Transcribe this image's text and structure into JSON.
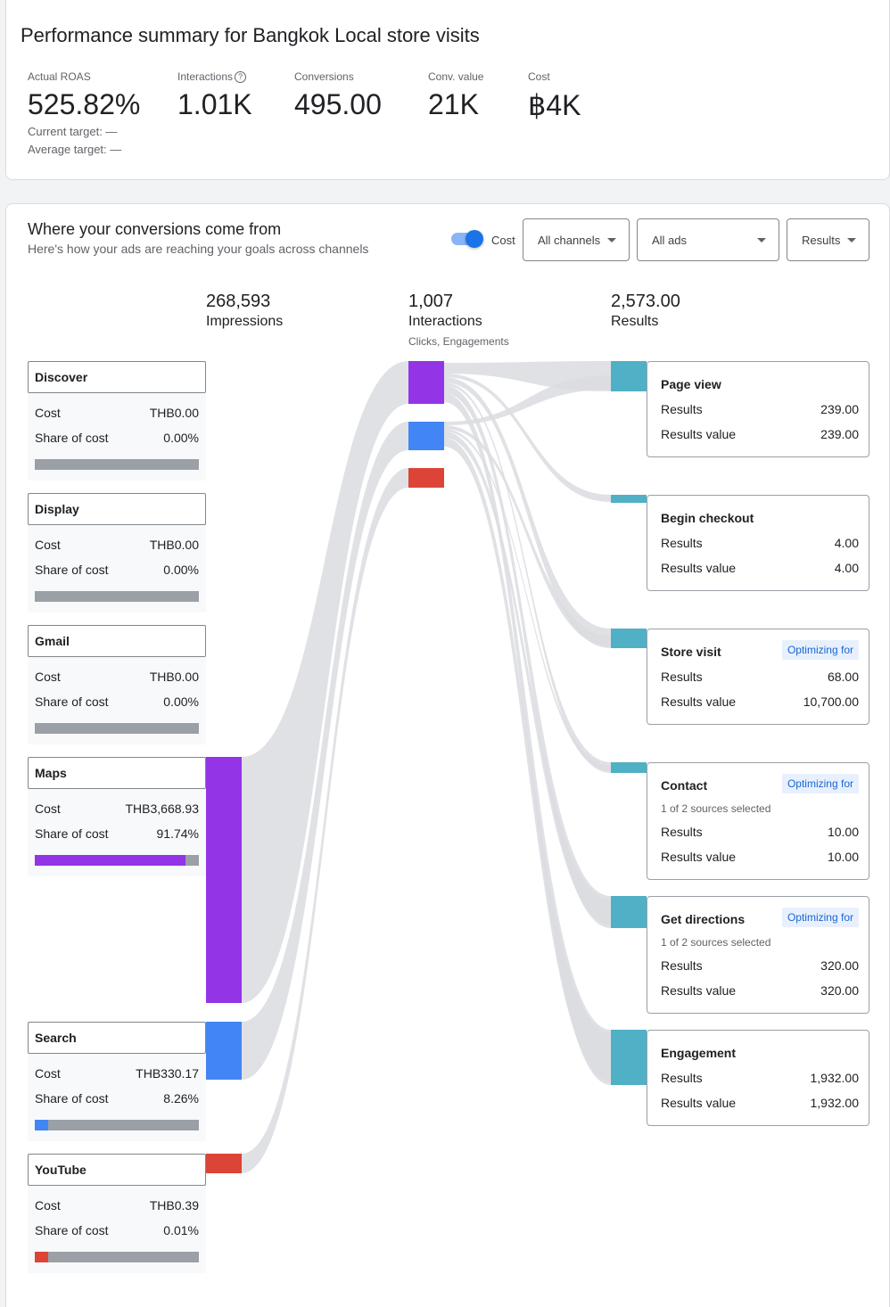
{
  "summary": {
    "title": "Performance summary for Bangkok Local store visits",
    "metrics": [
      {
        "label": "Actual ROAS",
        "value": "525.82%"
      },
      {
        "label": "Interactions",
        "value": "1.01K"
      },
      {
        "label": "Conversions",
        "value": "495.00"
      },
      {
        "label": "Conv. value",
        "value": "21K"
      },
      {
        "label": "Cost",
        "value": "฿4K"
      }
    ],
    "current_target": "Current target: —",
    "average_target": "Average target: —"
  },
  "flow": {
    "title": "Where your conversions come from",
    "subtitle": "Here's how your ads are reaching your goals across channels",
    "toggle": {
      "label": "Cost",
      "on": true
    },
    "dropdowns": {
      "channels": "All channels",
      "ads": "All ads",
      "results": "Results"
    },
    "columns": {
      "impressions": {
        "value": "268,593",
        "label": "Impressions"
      },
      "interactions": {
        "value": "1,007",
        "label": "Interactions",
        "sub": "Clicks, Engagements"
      },
      "results": {
        "value": "2,573.00",
        "label": "Results"
      }
    },
    "row_labels": {
      "cost": "Cost",
      "share": "Share of cost",
      "results": "Results",
      "results_value": "Results value"
    },
    "channels": [
      {
        "name": "Discover",
        "cost": "THB0.00",
        "share": "0.00%",
        "share_fraction": 0,
        "color": "#9334e6"
      },
      {
        "name": "Display",
        "cost": "THB0.00",
        "share": "0.00%",
        "share_fraction": 0,
        "color": "#9334e6"
      },
      {
        "name": "Gmail",
        "cost": "THB0.00",
        "share": "0.00%",
        "share_fraction": 0,
        "color": "#9334e6"
      },
      {
        "name": "Maps",
        "cost": "THB3,668.93",
        "share": "91.74%",
        "share_fraction": 0.9174,
        "color": "#9334e6"
      },
      {
        "name": "Search",
        "cost": "THB330.17",
        "share": "8.26%",
        "share_fraction": 0.0826,
        "color": "#4285f4"
      },
      {
        "name": "YouTube",
        "cost": "THB0.39",
        "share": "0.01%",
        "share_fraction": 0.0001,
        "color": "#db4437"
      }
    ],
    "results": [
      {
        "name": "Page view",
        "badge": "",
        "note": "",
        "results": "239.00",
        "value": "239.00"
      },
      {
        "name": "Begin checkout",
        "badge": "",
        "note": "",
        "results": "4.00",
        "value": "4.00"
      },
      {
        "name": "Store visit",
        "badge": "Optimizing for",
        "note": "",
        "results": "68.00",
        "value": "10,700.00"
      },
      {
        "name": "Contact",
        "badge": "Optimizing for",
        "note": "1 of 2 sources selected",
        "results": "10.00",
        "value": "10.00"
      },
      {
        "name": "Get directions",
        "badge": "Optimizing for",
        "note": "1 of 2 sources selected",
        "results": "320.00",
        "value": "320.00"
      },
      {
        "name": "Engagement",
        "badge": "",
        "note": "",
        "results": "1,932.00",
        "value": "1,932.00"
      }
    ],
    "colors": {
      "maps": "#9334e6",
      "search": "#4285f4",
      "youtube": "#db4437",
      "result_node": "#4fb0c6",
      "flow": "#dadce0"
    }
  }
}
